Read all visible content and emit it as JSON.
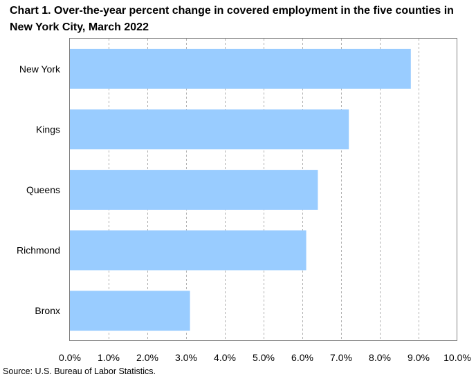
{
  "title": "Chart 1. Over-the-year percent change in covered employment in the five counties in New York City, March 2022",
  "source": "Source: U.S. Bureau of Labor Statistics.",
  "chart_data": {
    "type": "bar",
    "orientation": "horizontal",
    "title": "Chart 1. Over-the-year percent change in covered employment in the five counties in New York City, March 2022",
    "categories": [
      "New York",
      "Kings",
      "Queens",
      "Richmond",
      "Bronx"
    ],
    "values": [
      8.8,
      7.2,
      6.4,
      6.1,
      3.1
    ],
    "xlim": [
      0,
      10
    ],
    "x_ticks": [
      0,
      1,
      2,
      3,
      4,
      5,
      6,
      7,
      8,
      9,
      10
    ],
    "x_tick_labels": [
      "0.0%",
      "1.0%",
      "2.0%",
      "3.0%",
      "4.0%",
      "5.0%",
      "6.0%",
      "7.0%",
      "8.0%",
      "9.0%",
      "10.0%"
    ],
    "xlabel": "",
    "ylabel": "",
    "grid": "vertical dashed",
    "bar_color": "#99ccff",
    "grid_color": "#b0b0b0",
    "legend": "none"
  }
}
